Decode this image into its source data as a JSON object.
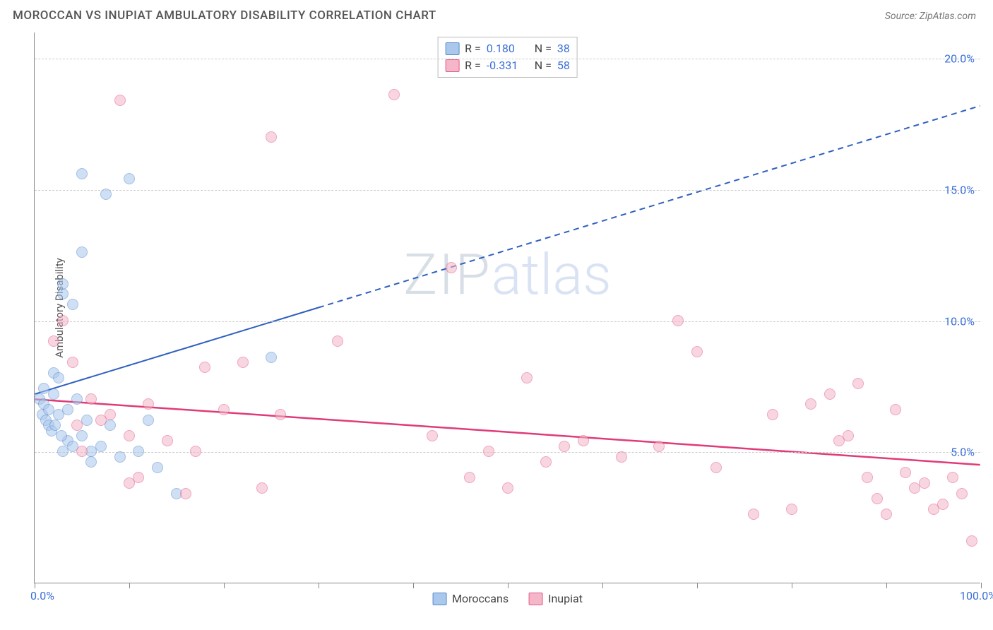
{
  "title": "MOROCCAN VS INUPIAT AMBULATORY DISABILITY CORRELATION CHART",
  "source_label": "Source: ZipAtlas.com",
  "ylabel": "Ambulatory Disability",
  "watermark": {
    "zip": "ZIP",
    "atlas": "atlas"
  },
  "chart": {
    "type": "scatter",
    "background_color": "#ffffff",
    "grid_color": "#cccccc",
    "axis_color": "#888888",
    "xlim": [
      0,
      100
    ],
    "ylim": [
      0,
      21
    ],
    "x_ticks": [
      0,
      10,
      20,
      30,
      40,
      50,
      60,
      70,
      80,
      90,
      100
    ],
    "x_tick_labels": {
      "0": "0.0%",
      "100": "100.0%"
    },
    "y_gridlines": [
      5,
      10,
      15,
      20
    ],
    "y_tick_labels": {
      "5": "5.0%",
      "10": "10.0%",
      "15": "15.0%",
      "20": "20.0%"
    },
    "tick_label_color": "#3b6fd6",
    "axis_label_color": "#555555",
    "marker_radius": 8,
    "series": [
      {
        "name": "Moroccans",
        "fill_color": "#a9c8ec",
        "stroke_color": "#5a8bd0",
        "fill_opacity": 0.55,
        "r_value": "0.180",
        "n_value": "38",
        "trend": {
          "solid": [
            [
              0,
              7.2
            ],
            [
              30,
              10.5
            ]
          ],
          "dashed": [
            [
              30,
              10.5
            ],
            [
              100,
              18.2
            ]
          ],
          "color": "#2f5fbf",
          "width": 2
        },
        "points": [
          [
            0.5,
            7.0
          ],
          [
            0.8,
            6.4
          ],
          [
            1.0,
            6.8
          ],
          [
            1.2,
            6.2
          ],
          [
            1.0,
            7.4
          ],
          [
            1.5,
            6.0
          ],
          [
            1.5,
            6.6
          ],
          [
            1.8,
            5.8
          ],
          [
            2.0,
            7.2
          ],
          [
            2.0,
            8.0
          ],
          [
            2.5,
            6.4
          ],
          [
            2.5,
            7.8
          ],
          [
            3.0,
            11.0
          ],
          [
            3.0,
            5.0
          ],
          [
            3.0,
            11.4
          ],
          [
            3.5,
            6.6
          ],
          [
            3.5,
            5.4
          ],
          [
            4.0,
            5.2
          ],
          [
            4.0,
            10.6
          ],
          [
            4.5,
            7.0
          ],
          [
            5.0,
            5.6
          ],
          [
            5.0,
            12.6
          ],
          [
            5.5,
            6.2
          ],
          [
            6.0,
            5.0
          ],
          [
            6.0,
            4.6
          ],
          [
            7.0,
            5.2
          ],
          [
            7.5,
            14.8
          ],
          [
            8.0,
            6.0
          ],
          [
            9.0,
            4.8
          ],
          [
            10.0,
            15.4
          ],
          [
            5.0,
            15.6
          ],
          [
            11.0,
            5.0
          ],
          [
            12.0,
            6.2
          ],
          [
            13.0,
            4.4
          ],
          [
            15.0,
            3.4
          ],
          [
            25.0,
            8.6
          ],
          [
            2.2,
            6.0
          ],
          [
            2.8,
            5.6
          ]
        ]
      },
      {
        "name": "Inupiat",
        "fill_color": "#f4b6c8",
        "stroke_color": "#e55a8a",
        "fill_opacity": 0.55,
        "r_value": "-0.331",
        "n_value": "58",
        "trend": {
          "solid": [
            [
              0,
              7.0
            ],
            [
              100,
              4.5
            ]
          ],
          "color": "#e03b78",
          "width": 2.5
        },
        "points": [
          [
            2.0,
            9.2
          ],
          [
            3.0,
            10.0
          ],
          [
            4.0,
            8.4
          ],
          [
            4.5,
            6.0
          ],
          [
            5.0,
            5.0
          ],
          [
            6.0,
            7.0
          ],
          [
            7.0,
            6.2
          ],
          [
            8.0,
            6.4
          ],
          [
            9.0,
            18.4
          ],
          [
            10.0,
            3.8
          ],
          [
            10.0,
            5.6
          ],
          [
            11.0,
            4.0
          ],
          [
            12.0,
            6.8
          ],
          [
            14.0,
            5.4
          ],
          [
            16.0,
            3.4
          ],
          [
            17.0,
            5.0
          ],
          [
            18.0,
            8.2
          ],
          [
            20.0,
            6.6
          ],
          [
            22.0,
            8.4
          ],
          [
            24.0,
            3.6
          ],
          [
            25.0,
            17.0
          ],
          [
            26.0,
            6.4
          ],
          [
            32.0,
            9.2
          ],
          [
            38.0,
            18.6
          ],
          [
            42.0,
            5.6
          ],
          [
            44.0,
            12.0
          ],
          [
            46.0,
            4.0
          ],
          [
            48.0,
            5.0
          ],
          [
            50.0,
            3.6
          ],
          [
            52.0,
            7.8
          ],
          [
            54.0,
            4.6
          ],
          [
            56.0,
            5.2
          ],
          [
            58.0,
            5.4
          ],
          [
            62.0,
            4.8
          ],
          [
            66.0,
            5.2
          ],
          [
            68.0,
            10.0
          ],
          [
            70.0,
            8.8
          ],
          [
            72.0,
            4.4
          ],
          [
            76.0,
            2.6
          ],
          [
            78.0,
            6.4
          ],
          [
            80.0,
            2.8
          ],
          [
            82.0,
            6.8
          ],
          [
            84.0,
            7.2
          ],
          [
            85.0,
            5.4
          ],
          [
            86.0,
            5.6
          ],
          [
            87.0,
            7.6
          ],
          [
            88.0,
            4.0
          ],
          [
            89.0,
            3.2
          ],
          [
            90.0,
            2.6
          ],
          [
            91.0,
            6.6
          ],
          [
            92.0,
            4.2
          ],
          [
            93.0,
            3.6
          ],
          [
            94.0,
            3.8
          ],
          [
            95.0,
            2.8
          ],
          [
            96.0,
            3.0
          ],
          [
            97.0,
            4.0
          ],
          [
            98.0,
            3.4
          ],
          [
            99.0,
            1.6
          ]
        ]
      }
    ],
    "stats_box": {
      "border_color": "#bbbbbb",
      "label_color": "#444444",
      "value_color": "#3b6fd6"
    },
    "bottom_legend": {
      "items": [
        "Moroccans",
        "Inupiat"
      ]
    }
  }
}
